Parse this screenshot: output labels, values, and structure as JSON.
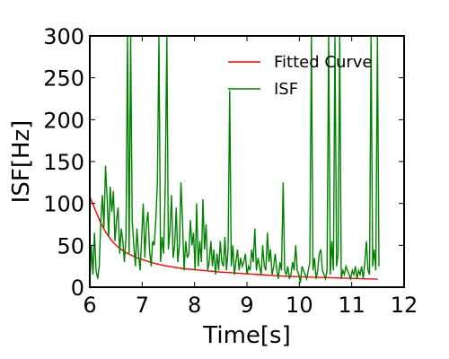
{
  "chart_data": {
    "type": "line",
    "xlabel": "Time[s]",
    "ylabel": "ISF[Hz]",
    "xlim": [
      6,
      12
    ],
    "ylim": [
      0,
      300
    ],
    "xticks": [
      6,
      7,
      8,
      9,
      10,
      11,
      12
    ],
    "yticks": [
      0,
      50,
      100,
      150,
      200,
      250,
      300
    ],
    "xtick_labels": [
      "6",
      "7",
      "8",
      "9",
      "10",
      "11",
      "12"
    ],
    "ytick_labels": [
      "0",
      "50",
      "100",
      "150",
      "200",
      "250",
      "300"
    ],
    "legend_position": "top-right",
    "grid": false,
    "series": [
      {
        "name": "Fitted Curve",
        "color": "#ff0000",
        "x": [
          6.0,
          6.1,
          6.2,
          6.3,
          6.4,
          6.5,
          6.6,
          6.7,
          6.8,
          6.9,
          7.0,
          7.2,
          7.4,
          7.6,
          7.8,
          8.0,
          8.25,
          8.5,
          8.75,
          9.0,
          9.25,
          9.5,
          9.75,
          10.0,
          10.25,
          10.5,
          10.75,
          11.0,
          11.25,
          11.5
        ],
        "y": [
          108,
          93,
          78,
          66,
          57,
          50,
          45,
          41,
          38,
          35,
          33,
          29,
          26,
          24,
          22,
          21,
          19.5,
          18,
          17,
          16,
          15,
          14,
          13,
          12.5,
          12,
          11.5,
          11,
          10.5,
          10,
          9.5
        ]
      },
      {
        "name": "ISF",
        "color": "#008000",
        "x": [
          6.0,
          6.03,
          6.06,
          6.09,
          6.12,
          6.15,
          6.18,
          6.21,
          6.24,
          6.27,
          6.3,
          6.33,
          6.36,
          6.39,
          6.42,
          6.45,
          6.48,
          6.51,
          6.54,
          6.57,
          6.6,
          6.63,
          6.66,
          6.69,
          6.72,
          6.75,
          6.78,
          6.81,
          6.84,
          6.87,
          6.9,
          6.93,
          6.96,
          6.99,
          7.02,
          7.05,
          7.08,
          7.11,
          7.14,
          7.17,
          7.2,
          7.23,
          7.26,
          7.29,
          7.32,
          7.35,
          7.38,
          7.41,
          7.44,
          7.47,
          7.5,
          7.53,
          7.56,
          7.59,
          7.62,
          7.65,
          7.68,
          7.71,
          7.74,
          7.77,
          7.8,
          7.83,
          7.86,
          7.89,
          7.92,
          7.95,
          7.98,
          8.01,
          8.04,
          8.07,
          8.1,
          8.13,
          8.16,
          8.19,
          8.22,
          8.25,
          8.28,
          8.31,
          8.34,
          8.37,
          8.4,
          8.43,
          8.46,
          8.49,
          8.52,
          8.55,
          8.58,
          8.61,
          8.64,
          8.67,
          8.7,
          8.73,
          8.76,
          8.79,
          8.82,
          8.85,
          8.88,
          8.91,
          8.94,
          8.97,
          9.0,
          9.03,
          9.06,
          9.09,
          9.12,
          9.15,
          9.18,
          9.21,
          9.24,
          9.27,
          9.3,
          9.33,
          9.36,
          9.39,
          9.42,
          9.45,
          9.48,
          9.51,
          9.54,
          9.57,
          9.6,
          9.63,
          9.66,
          9.69,
          9.72,
          9.75,
          9.78,
          9.81,
          9.84,
          9.87,
          9.9,
          9.93,
          9.96,
          9.99,
          10.02,
          10.05,
          10.08,
          10.11,
          10.14,
          10.17,
          10.2,
          10.23,
          10.26,
          10.29,
          10.32,
          10.35,
          10.38,
          10.41,
          10.44,
          10.47,
          10.5,
          10.53,
          10.56,
          10.59,
          10.62,
          10.65,
          10.68,
          10.71,
          10.74,
          10.77,
          10.8,
          10.83,
          10.86,
          10.89,
          10.92,
          10.95,
          10.98,
          11.01,
          11.04,
          11.07,
          11.1,
          11.13,
          11.16,
          11.19,
          11.22,
          11.25,
          11.28,
          11.31,
          11.34,
          11.37,
          11.4,
          11.43,
          11.46,
          11.49,
          11.52
        ],
        "y": [
          5,
          50,
          15,
          65,
          20,
          10,
          25,
          80,
          110,
          70,
          145,
          105,
          60,
          120,
          90,
          115,
          55,
          80,
          95,
          40,
          70,
          55,
          30,
          60,
          300,
          40,
          300,
          80,
          50,
          25,
          70,
          40,
          20,
          60,
          100,
          35,
          75,
          90,
          45,
          25,
          55,
          50,
          80,
          125,
          300,
          30,
          60,
          40,
          120,
          300,
          45,
          70,
          110,
          35,
          50,
          95,
          30,
          50,
          125,
          80,
          20,
          55,
          35,
          40,
          80,
          50,
          65,
          20,
          100,
          25,
          55,
          30,
          105,
          45,
          75,
          20,
          30,
          55,
          25,
          45,
          15,
          40,
          20,
          55,
          30,
          25,
          60,
          20,
          45,
          235,
          25,
          50,
          15,
          30,
          45,
          20,
          35,
          25,
          30,
          40,
          15,
          25,
          20,
          45,
          30,
          70,
          20,
          35,
          25,
          15,
          50,
          25,
          20,
          65,
          30,
          45,
          15,
          25,
          40,
          20,
          10,
          30,
          20,
          125,
          20,
          15,
          25,
          10,
          15,
          30,
          20,
          50,
          20,
          15,
          5,
          25,
          20,
          15,
          10,
          20,
          30,
          300,
          20,
          35,
          10,
          20,
          40,
          45,
          20,
          15,
          10,
          20,
          300,
          15,
          55,
          20,
          300,
          25,
          40,
          300,
          10,
          20,
          15,
          25,
          20,
          15,
          10,
          20,
          15,
          25,
          10,
          20,
          15,
          25,
          10,
          30,
          55,
          20,
          15,
          300,
          25,
          45,
          20,
          300,
          25
        ]
      }
    ]
  }
}
